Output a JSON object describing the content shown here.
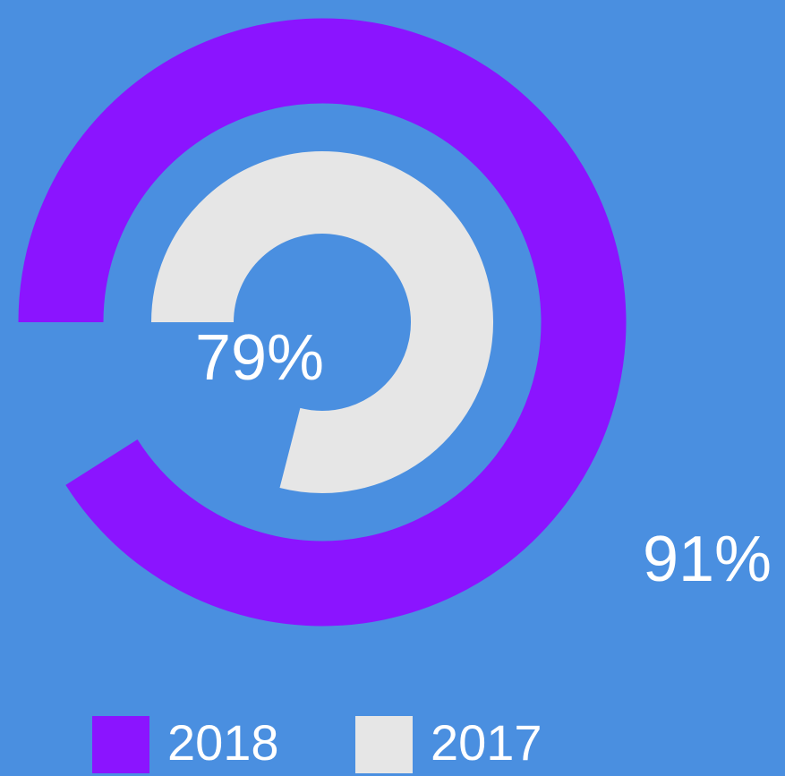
{
  "chart_data": {
    "type": "radial_bar",
    "series": [
      {
        "name": "2018",
        "color": "#8b14ff",
        "values": [
          91
        ],
        "value_labels": [
          "91%"
        ]
      },
      {
        "name": "2017",
        "color": "#e6e6e6",
        "values": [
          79
        ],
        "value_labels": [
          "79%"
        ]
      }
    ],
    "ylim": [
      0,
      100
    ]
  }
}
